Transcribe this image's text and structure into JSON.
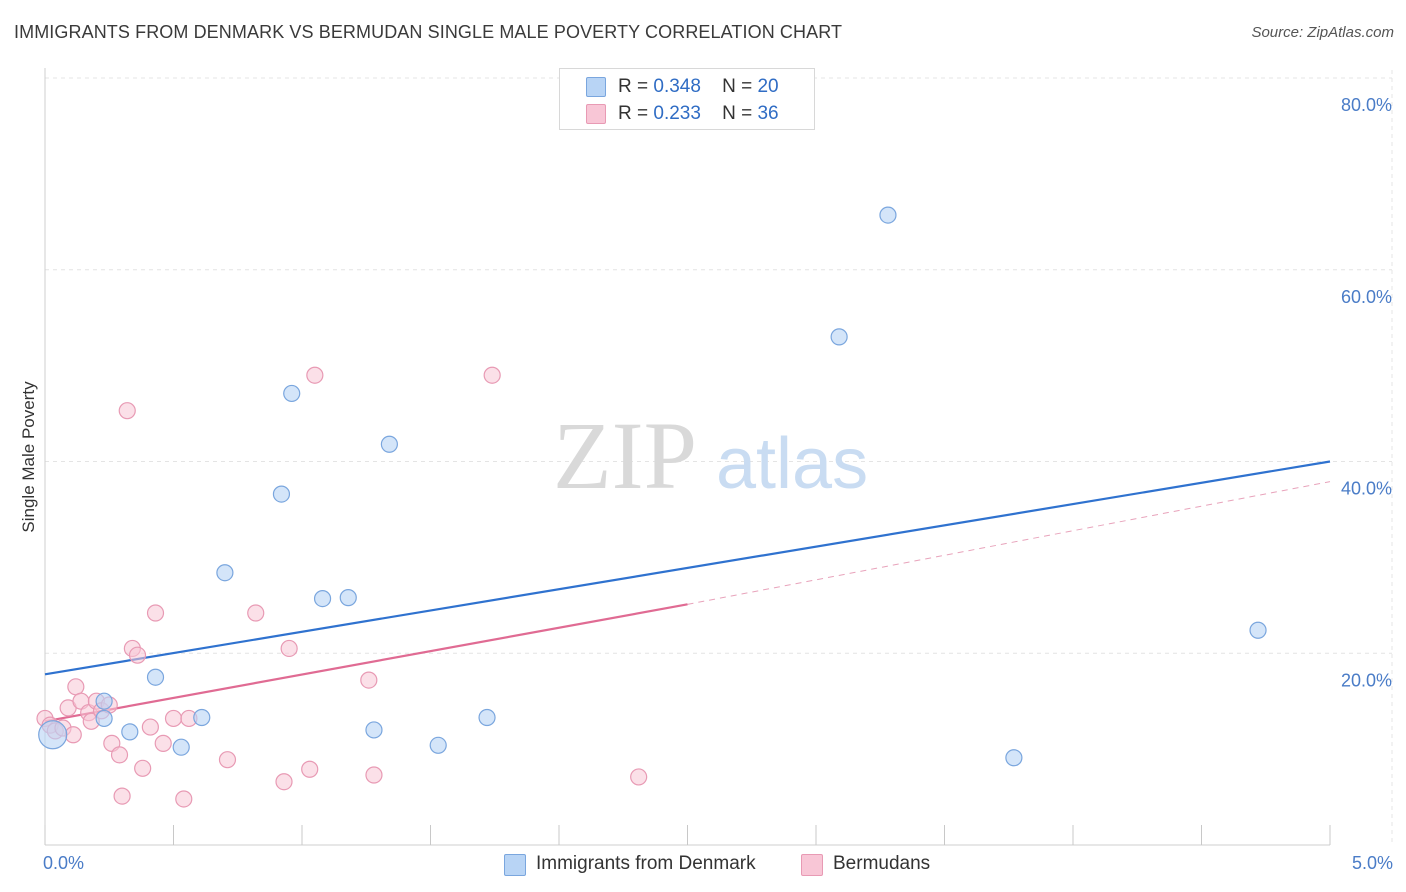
{
  "header": {
    "title": "IMMIGRANTS FROM DENMARK VS BERMUDAN SINGLE MALE POVERTY CORRELATION CHART",
    "source": "Source: ZipAtlas.com"
  },
  "watermark": {
    "zip": "ZIP",
    "atlas": "atlas"
  },
  "legend": {
    "rows": [
      {
        "r_label": "R =",
        "r_value": "0.348",
        "n_label": "N =",
        "n_value": "20"
      },
      {
        "r_label": "R =",
        "r_value": "0.233",
        "n_label": "N =",
        "n_value": "36"
      }
    ]
  },
  "bottom_legend": {
    "items": [
      {
        "label": "Immigrants from Denmark"
      },
      {
        "label": "Bermudans"
      }
    ]
  },
  "colors": {
    "blue_fill": "#b8d4f5",
    "blue_stroke": "#7aa6de",
    "blue_line": "#2f72cf",
    "pink_fill": "#f8c6d6",
    "pink_stroke": "#e89ab4",
    "pink_line": "#e06b93",
    "grid": "#e4e4e4",
    "tick_text": "#4a7cc7"
  },
  "chart_data": {
    "type": "scatter",
    "title": "IMMIGRANTS FROM DENMARK VS BERMUDAN SINGLE MALE POVERTY CORRELATION CHART",
    "xlabel": "",
    "ylabel": "Single Male Poverty",
    "xlim": [
      0,
      5
    ],
    "ylim": [
      0,
      80
    ],
    "y_ticks": [
      "20.0%",
      "40.0%",
      "60.0%",
      "80.0%"
    ],
    "y_tick_values": [
      20,
      40,
      60,
      80
    ],
    "x_tick_labels": [
      "0.0%",
      "5.0%"
    ],
    "x_tick_values": [
      0,
      5
    ],
    "grid": true,
    "legend_position": "top-center",
    "series": [
      {
        "name": "Immigrants from Denmark",
        "color": "#b8d4f5",
        "points": [
          [
            0.03,
            11.5
          ],
          [
            0.23,
            13.2
          ],
          [
            0.23,
            15.0
          ],
          [
            0.33,
            11.8
          ],
          [
            0.43,
            17.5
          ],
          [
            0.53,
            10.2
          ],
          [
            0.61,
            13.3
          ],
          [
            0.7,
            28.4
          ],
          [
            0.92,
            36.6
          ],
          [
            0.96,
            47.1
          ],
          [
            1.08,
            25.7
          ],
          [
            1.18,
            25.8
          ],
          [
            1.28,
            12.0
          ],
          [
            1.34,
            41.8
          ],
          [
            1.53,
            10.4
          ],
          [
            1.72,
            13.3
          ],
          [
            3.09,
            53.0
          ],
          [
            3.28,
            65.7
          ],
          [
            3.77,
            9.1
          ],
          [
            4.72,
            22.4
          ]
        ],
        "trend": {
          "x0": 0,
          "y0": 17.8,
          "x1": 5,
          "y1": 40.0
        }
      },
      {
        "name": "Bermudans",
        "color": "#f8c6d6",
        "points": [
          [
            0.0,
            13.2
          ],
          [
            0.02,
            12.5
          ],
          [
            0.04,
            11.9
          ],
          [
            0.07,
            12.2
          ],
          [
            0.09,
            14.3
          ],
          [
            0.11,
            11.5
          ],
          [
            0.12,
            16.5
          ],
          [
            0.14,
            15.0
          ],
          [
            0.17,
            13.8
          ],
          [
            0.18,
            12.9
          ],
          [
            0.2,
            15.0
          ],
          [
            0.22,
            14.0
          ],
          [
            0.25,
            14.6
          ],
          [
            0.26,
            10.6
          ],
          [
            0.29,
            9.4
          ],
          [
            0.3,
            5.1
          ],
          [
            0.32,
            45.3
          ],
          [
            0.34,
            20.5
          ],
          [
            0.36,
            19.8
          ],
          [
            0.38,
            8.0
          ],
          [
            0.41,
            12.3
          ],
          [
            0.43,
            24.2
          ],
          [
            0.46,
            10.6
          ],
          [
            0.5,
            13.2
          ],
          [
            0.54,
            4.8
          ],
          [
            0.56,
            13.2
          ],
          [
            0.71,
            8.9
          ],
          [
            0.82,
            24.2
          ],
          [
            0.93,
            6.6
          ],
          [
            0.95,
            20.5
          ],
          [
            1.03,
            7.9
          ],
          [
            1.05,
            49.0
          ],
          [
            1.26,
            17.2
          ],
          [
            1.28,
            7.3
          ],
          [
            1.74,
            49.0
          ],
          [
            2.31,
            7.1
          ]
        ],
        "trend": {
          "x0": 0,
          "y0": 12.9,
          "x1": 2.5,
          "y1": 25.1
        },
        "trend_extension": {
          "x0": 2.5,
          "y0": 25.1,
          "x1": 5,
          "y1": 37.9
        }
      }
    ]
  }
}
